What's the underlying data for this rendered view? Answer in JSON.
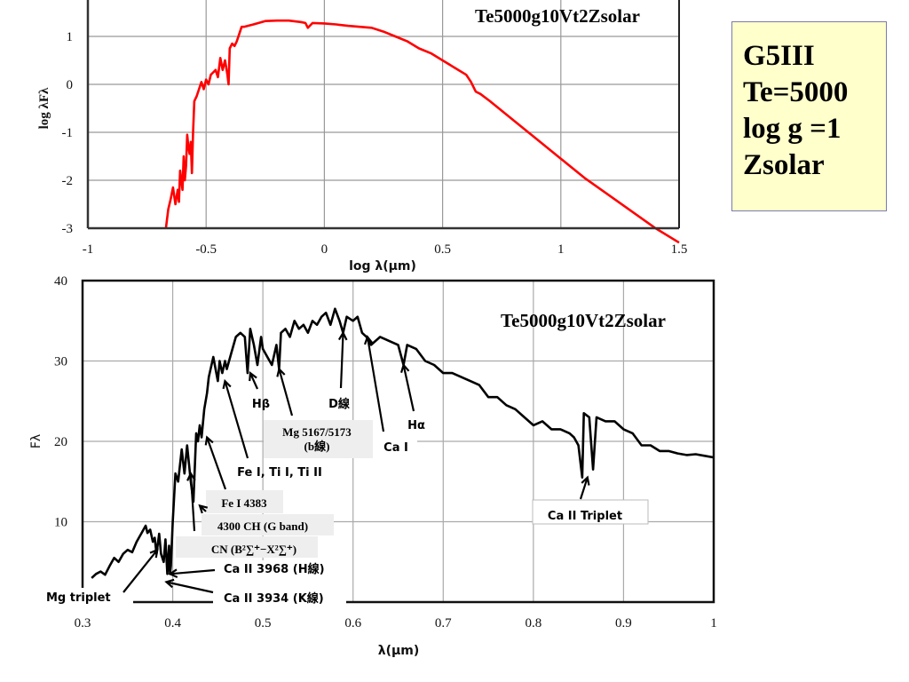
{
  "chart_data": [
    {
      "type": "line",
      "title": "Te5000g10Vt2Zsolar",
      "xlabel": "log λ(μm)",
      "ylabel": "log λFλ",
      "xlim": [
        -1,
        1.5
      ],
      "ylim": [
        -3,
        2
      ],
      "xticks": [
        "-1",
        "-0.5",
        "0",
        "0.5",
        "1",
        "1.5"
      ],
      "yticks": [
        "-3",
        "-2",
        "-1",
        "0",
        "1"
      ],
      "grid": true,
      "line_color": "#ff0000",
      "series": [
        {
          "name": "Te5000g10Vt2Zsolar",
          "x": [
            -0.67,
            -0.66,
            -0.65,
            -0.64,
            -0.63,
            -0.62,
            -0.615,
            -0.61,
            -0.6,
            -0.595,
            -0.59,
            -0.585,
            -0.58,
            -0.575,
            -0.57,
            -0.565,
            -0.56,
            -0.555,
            -0.55,
            -0.545,
            -0.54,
            -0.53,
            -0.52,
            -0.51,
            -0.5,
            -0.49,
            -0.48,
            -0.47,
            -0.46,
            -0.45,
            -0.44,
            -0.43,
            -0.42,
            -0.41,
            -0.405,
            -0.4,
            -0.39,
            -0.38,
            -0.37,
            -0.36,
            -0.35,
            -0.34,
            -0.3,
            -0.25,
            -0.2,
            -0.15,
            -0.1,
            -0.08,
            -0.07,
            -0.05,
            0,
            0.05,
            0.1,
            0.15,
            0.2,
            0.25,
            0.3,
            0.35,
            0.4,
            0.45,
            0.5,
            0.55,
            0.6,
            0.62,
            0.64,
            0.66,
            0.7,
            0.8,
            0.9,
            1.0,
            1.1,
            1.2,
            1.3,
            1.4,
            1.5
          ],
          "y": [
            -3.0,
            -2.6,
            -2.4,
            -2.15,
            -2.5,
            -2.2,
            -2.45,
            -1.8,
            -2.2,
            -1.5,
            -2.0,
            -1.7,
            -1.05,
            -1.3,
            -1.45,
            -1.2,
            -1.85,
            -1.0,
            -0.35,
            -0.3,
            -0.25,
            -0.1,
            0.05,
            -0.1,
            0.1,
            0.0,
            0.2,
            0.25,
            0.3,
            0.15,
            0.55,
            0.3,
            0.5,
            0.2,
            0.0,
            0.75,
            0.85,
            0.8,
            0.9,
            1.05,
            1.2,
            1.2,
            1.25,
            1.32,
            1.33,
            1.33,
            1.3,
            1.28,
            1.18,
            1.28,
            1.27,
            1.25,
            1.22,
            1.2,
            1.18,
            1.1,
            1.0,
            0.9,
            0.75,
            0.65,
            0.5,
            0.35,
            0.2,
            0.05,
            -0.15,
            -0.2,
            -0.35,
            -0.75,
            -1.15,
            -1.55,
            -1.95,
            -2.3,
            -2.65,
            -3.0,
            -3.3
          ]
        }
      ],
      "info_box": [
        "G5III",
        "Te=5000",
        "log g =1",
        "Zsolar"
      ],
      "info_box_color": "#ffffcc"
    },
    {
      "type": "line",
      "title": "Te5000g10Vt2Zsolar",
      "xlabel": "λ(μm)",
      "ylabel": "Fλ",
      "xlim": [
        0.3,
        1.0
      ],
      "ylim": [
        0,
        40
      ],
      "xticks": [
        "0.3",
        "0.4",
        "0.5",
        "0.6",
        "0.7",
        "0.8",
        "0.9",
        "1"
      ],
      "yticks": [
        "10",
        "20",
        "30",
        "40"
      ],
      "grid": true,
      "line_color": "#000000",
      "series": [
        {
          "name": "Te5000g10Vt2Zsolar",
          "x": [
            0.31,
            0.315,
            0.32,
            0.325,
            0.33,
            0.335,
            0.34,
            0.345,
            0.35,
            0.355,
            0.36,
            0.365,
            0.37,
            0.372,
            0.375,
            0.378,
            0.38,
            0.382,
            0.385,
            0.387,
            0.39,
            0.392,
            0.394,
            0.396,
            0.397,
            0.398,
            0.4,
            0.403,
            0.406,
            0.41,
            0.413,
            0.416,
            0.42,
            0.423,
            0.426,
            0.428,
            0.43,
            0.432,
            0.435,
            0.438,
            0.44,
            0.445,
            0.45,
            0.452,
            0.455,
            0.458,
            0.46,
            0.465,
            0.47,
            0.475,
            0.48,
            0.483,
            0.486,
            0.49,
            0.494,
            0.498,
            0.5,
            0.505,
            0.51,
            0.515,
            0.518,
            0.52,
            0.525,
            0.53,
            0.535,
            0.54,
            0.545,
            0.55,
            0.555,
            0.56,
            0.565,
            0.57,
            0.575,
            0.58,
            0.585,
            0.589,
            0.593,
            0.6,
            0.605,
            0.61,
            0.615,
            0.62,
            0.625,
            0.63,
            0.64,
            0.65,
            0.656,
            0.66,
            0.67,
            0.68,
            0.69,
            0.7,
            0.71,
            0.72,
            0.73,
            0.74,
            0.75,
            0.76,
            0.77,
            0.78,
            0.79,
            0.8,
            0.81,
            0.82,
            0.83,
            0.84,
            0.845,
            0.85,
            0.8542,
            0.856,
            0.862,
            0.8662,
            0.87,
            0.88,
            0.89,
            0.9,
            0.91,
            0.92,
            0.93,
            0.94,
            0.95,
            0.96,
            0.97,
            0.98,
            0.99,
            1.0
          ],
          "y": [
            3.0,
            3.5,
            3.8,
            3.4,
            4.5,
            5.5,
            5.0,
            6.0,
            6.5,
            6.2,
            7.5,
            8.5,
            9.5,
            8.6,
            9.0,
            7.5,
            8.0,
            6.0,
            8.5,
            6.0,
            5.0,
            7.8,
            3.5,
            7.0,
            3.5,
            4.5,
            10.0,
            16.0,
            15.0,
            19.0,
            16.0,
            19.5,
            15.0,
            12.5,
            21.0,
            20.0,
            22.0,
            20.5,
            24.0,
            26.0,
            28.0,
            30.5,
            27.5,
            30.0,
            28.5,
            30.0,
            29.0,
            31.0,
            33.0,
            33.5,
            33.0,
            28.5,
            34.0,
            32.0,
            29.5,
            33.0,
            31.5,
            30.5,
            29.5,
            32.0,
            29.0,
            33.5,
            34.0,
            33.0,
            35.0,
            34.0,
            34.5,
            33.5,
            35.0,
            34.5,
            35.5,
            36.0,
            34.5,
            36.5,
            35.0,
            33.5,
            35.5,
            35.0,
            35.5,
            33.5,
            33.0,
            32.0,
            32.5,
            33.0,
            32.5,
            32.0,
            29.5,
            32.0,
            31.5,
            30.0,
            29.5,
            28.5,
            28.5,
            28.0,
            27.5,
            27.0,
            25.5,
            25.5,
            24.5,
            24.0,
            23.0,
            22.0,
            22.5,
            21.5,
            21.5,
            21.0,
            20.5,
            19.5,
            15.5,
            23.5,
            23.0,
            16.5,
            23.0,
            22.5,
            22.5,
            21.5,
            21.0,
            19.5,
            19.5,
            18.8,
            18.8,
            18.5,
            18.3,
            18.4,
            18.2,
            18.0
          ]
        }
      ],
      "annotations": [
        {
          "label": "Hβ",
          "x": 0.486,
          "y": 28.5,
          "boxed": false
        },
        {
          "label": "Mg 5167/5173",
          "label2": "(b線)",
          "x": 0.518,
          "y": 29.0,
          "boxed": true
        },
        {
          "label": "D線",
          "x": 0.589,
          "y": 33.5,
          "boxed": false
        },
        {
          "label": "Ca I",
          "x": 0.616,
          "y": 33.0,
          "boxed": false
        },
        {
          "label": "Hα",
          "x": 0.656,
          "y": 29.5,
          "boxed": false
        },
        {
          "label": "Fe I, Ti I, Ti II",
          "x": 0.458,
          "y": 27.5,
          "boxed": false
        },
        {
          "label": "Fe I 4383",
          "x": 0.438,
          "y": 20.5,
          "boxed": true
        },
        {
          "label": "4300 CH (G band)",
          "x": 0.43,
          "y": 12.0,
          "boxed": true
        },
        {
          "label": "CN (B²∑⁺−X²∑⁺)",
          "x": 0.42,
          "y": 16.0,
          "boxed": true
        },
        {
          "label": "Ca II 3968 (H線)",
          "x": 0.397,
          "y": 3.5,
          "boxed": false
        },
        {
          "label": "Ca II 3934 (K線)",
          "x": 0.393,
          "y": 2.5,
          "boxed": false
        },
        {
          "label": "Mg triplet",
          "x": 0.383,
          "y": 6.5,
          "boxed": false
        },
        {
          "label": "Ca II Triplet",
          "x": 0.86,
          "y": 15.5,
          "boxed": true
        }
      ]
    }
  ]
}
